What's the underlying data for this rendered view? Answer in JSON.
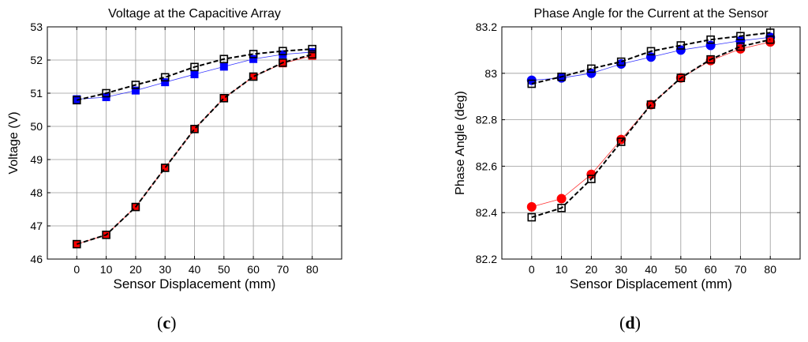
{
  "figure_labels": {
    "c": "c",
    "d": "d",
    "open": "(",
    "close": ")"
  },
  "chart_data": [
    {
      "type": "line",
      "title": "Voltage at the Capacitive Array",
      "xlabel": "Sensor Displacement (mm)",
      "ylabel": "Voltage (V)",
      "x": [
        0,
        10,
        20,
        30,
        40,
        50,
        60,
        70,
        80
      ],
      "xlim": [
        -10,
        90
      ],
      "ylim": [
        46,
        53
      ],
      "xticks": [
        0,
        10,
        20,
        30,
        40,
        50,
        60,
        70,
        80
      ],
      "yticks": [
        46,
        47,
        48,
        49,
        50,
        51,
        52,
        53
      ],
      "grid": true,
      "series": [
        {
          "name": "series-1",
          "color": "#0000ff",
          "line": "solid",
          "marker": "square-filled",
          "values": [
            50.82,
            50.88,
            51.08,
            51.33,
            51.57,
            51.8,
            52.03,
            52.17,
            52.24
          ]
        },
        {
          "name": "series-2",
          "color": "#ff0000",
          "line": "solid",
          "marker": "square-filled",
          "values": [
            46.45,
            46.73,
            47.57,
            48.75,
            49.92,
            50.85,
            51.5,
            51.9,
            52.13
          ]
        },
        {
          "name": "series-3",
          "color": "#000000",
          "line": "dashed",
          "marker": "square-open",
          "values": [
            50.79,
            51.0,
            51.25,
            51.48,
            51.79,
            52.03,
            52.18,
            52.27,
            52.33
          ]
        },
        {
          "name": "series-4",
          "color": "#000000",
          "line": "dashed",
          "marker": "square-open",
          "values": [
            46.45,
            46.73,
            47.57,
            48.75,
            49.92,
            50.85,
            51.5,
            51.92,
            52.17
          ]
        }
      ]
    },
    {
      "type": "line",
      "title": "Phase Angle for the Current at the Sensor",
      "xlabel": "Sensor Displacement (mm)",
      "ylabel": "Phase Angle (deg)",
      "x": [
        0,
        10,
        20,
        30,
        40,
        50,
        60,
        70,
        80
      ],
      "xlim": [
        -10,
        90
      ],
      "ylim": [
        82.2,
        83.2
      ],
      "xticks": [
        0,
        10,
        20,
        30,
        40,
        50,
        60,
        70,
        80
      ],
      "yticks": [
        82.2,
        82.4,
        82.6,
        82.8,
        83,
        83.2
      ],
      "grid": true,
      "series": [
        {
          "name": "series-1",
          "color": "#0000ff",
          "line": "solid",
          "marker": "circle-filled",
          "values": [
            82.97,
            82.98,
            83.0,
            83.04,
            83.07,
            83.1,
            83.12,
            83.14,
            83.155
          ]
        },
        {
          "name": "series-2",
          "color": "#ff0000",
          "line": "solid",
          "marker": "circle-filled",
          "values": [
            82.425,
            82.46,
            82.565,
            82.715,
            82.865,
            82.98,
            83.055,
            83.105,
            83.135
          ]
        },
        {
          "name": "series-3",
          "color": "#000000",
          "line": "dashed",
          "marker": "square-open",
          "values": [
            82.955,
            82.985,
            83.02,
            83.05,
            83.095,
            83.12,
            83.145,
            83.16,
            83.175
          ]
        },
        {
          "name": "series-4",
          "color": "#000000",
          "line": "dashed",
          "marker": "square-open",
          "values": [
            82.38,
            82.42,
            82.545,
            82.705,
            82.865,
            82.98,
            83.06,
            83.115,
            83.145
          ]
        }
      ]
    }
  ]
}
